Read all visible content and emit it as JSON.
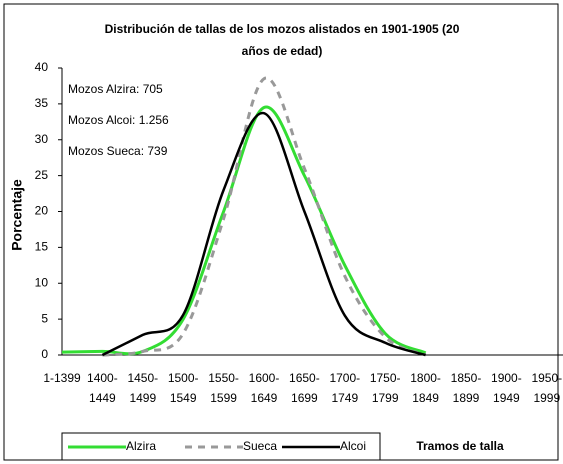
{
  "chart_data": {
    "type": "line",
    "title": "Distribución de tallas de los mozos alistados en 1901-1905 (20 años de edad)",
    "y_label": "Porcentaje",
    "x_label": "Tramos de talla",
    "annotations": [
      "Mozos Alzira: 705",
      "Mozos Alcoi: 1.256",
      "Mozos Sueca: 739"
    ],
    "categories": [
      "1-1399",
      "1400-1449",
      "1450-1499",
      "1500-1549",
      "1550-1599",
      "1600-1649",
      "1650-1699",
      "1700-1749",
      "1750-1799",
      "1800-1849",
      "1850-1899",
      "1900-1949",
      "1950-1999"
    ],
    "series": [
      {
        "name": "Alzira",
        "color": "#33dd33",
        "values": [
          0.4,
          0.5,
          0.5,
          5,
          20,
          34.5,
          25,
          12.5,
          3,
          0.3,
          null,
          null,
          null
        ]
      },
      {
        "name": "Sueca",
        "color": "#999999",
        "values": [
          null,
          0,
          0.5,
          3,
          19,
          38.5,
          26,
          11,
          2.5,
          0,
          null,
          null,
          null
        ]
      },
      {
        "name": "Alcoi",
        "color": "#000000",
        "values": [
          null,
          0,
          2.8,
          5.6,
          23,
          33.7,
          20,
          5.5,
          1.7,
          0,
          null,
          null,
          null
        ]
      }
    ],
    "ylim": [
      0,
      40
    ],
    "yticks": [
      0,
      5,
      10,
      15,
      20,
      25,
      30,
      35,
      40
    ]
  }
}
